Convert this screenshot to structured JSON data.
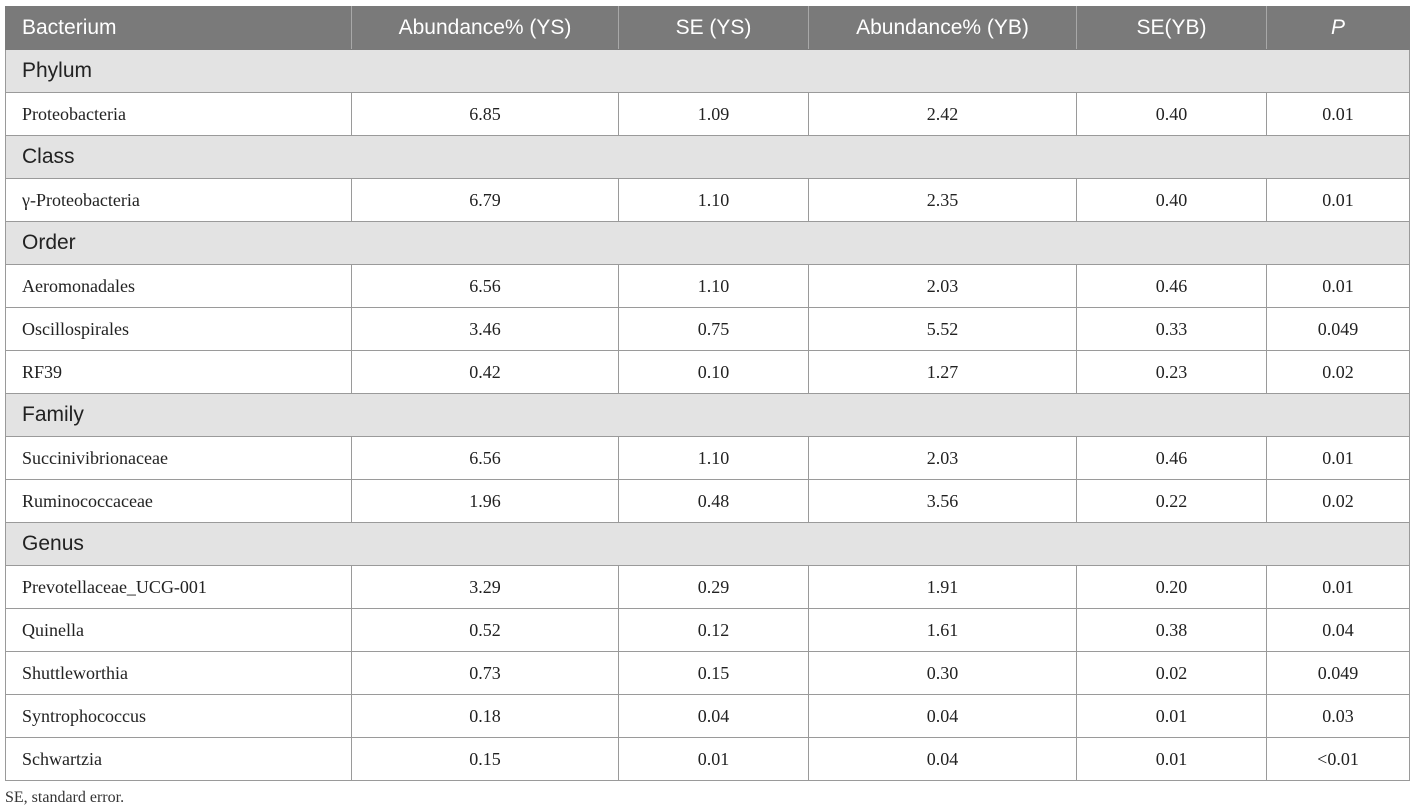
{
  "table": {
    "headers": {
      "bacterium": "Bacterium",
      "abundance_ys": "Abundance% (YS)",
      "se_ys": "SE (YS)",
      "abundance_yb": "Abundance% (YB)",
      "se_yb": "SE(YB)",
      "p": "P"
    },
    "groups": [
      {
        "label": "Phylum",
        "rows": [
          [
            "Proteobacteria",
            "6.85",
            "1.09",
            "2.42",
            "0.40",
            "0.01"
          ]
        ]
      },
      {
        "label": "Class",
        "rows": [
          [
            "γ-Proteobacteria",
            "6.79",
            "1.10",
            "2.35",
            "0.40",
            "0.01"
          ]
        ]
      },
      {
        "label": "Order",
        "rows": [
          [
            "Aeromonadales",
            "6.56",
            "1.10",
            "2.03",
            "0.46",
            "0.01"
          ],
          [
            "Oscillospirales",
            "3.46",
            "0.75",
            "5.52",
            "0.33",
            "0.049"
          ],
          [
            "RF39",
            "0.42",
            "0.10",
            "1.27",
            "0.23",
            "0.02"
          ]
        ]
      },
      {
        "label": "Family",
        "rows": [
          [
            "Succinivibrionaceae",
            "6.56",
            "1.10",
            "2.03",
            "0.46",
            "0.01"
          ],
          [
            "Ruminococcaceae",
            "1.96",
            "0.48",
            "3.56",
            "0.22",
            "0.02"
          ]
        ]
      },
      {
        "label": "Genus",
        "rows": [
          [
            "Prevotellaceae_UCG-001",
            "3.29",
            "0.29",
            "1.91",
            "0.20",
            "0.01"
          ],
          [
            "Quinella",
            "0.52",
            "0.12",
            "1.61",
            "0.38",
            "0.04"
          ],
          [
            "Shuttleworthia",
            "0.73",
            "0.15",
            "0.30",
            "0.02",
            "0.049"
          ],
          [
            "Syntrophococcus",
            "0.18",
            "0.04",
            "0.04",
            "0.01",
            "0.03"
          ],
          [
            "Schwartzia",
            "0.15",
            "0.01",
            "0.04",
            "0.01",
            "<0.01"
          ]
        ]
      }
    ]
  },
  "footnote": "SE, standard error.",
  "colors": {
    "header_bg": "#7a7a7a",
    "group_bg": "#e3e3e3",
    "border": "#9a9a9a"
  }
}
